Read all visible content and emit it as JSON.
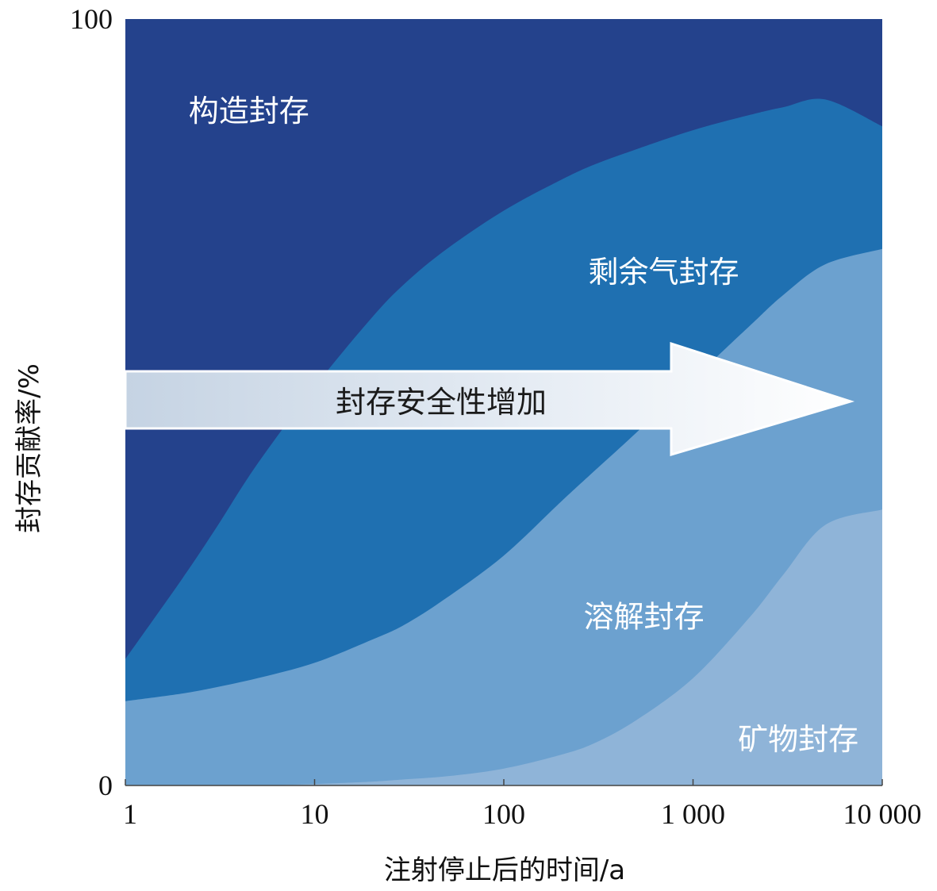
{
  "chart_data": {
    "type": "area",
    "stacked": true,
    "x_scale": "log",
    "xlim": [
      1,
      10000
    ],
    "ylim": [
      0,
      100
    ],
    "xlabel": "注射停止后的时间/a",
    "ylabel": "封存贡献率/%",
    "x_ticks": [
      {
        "value": 1,
        "label": "1"
      },
      {
        "value": 10,
        "label": "10"
      },
      {
        "value": 100,
        "label": "100"
      },
      {
        "value": 1000,
        "label": "1 000"
      },
      {
        "value": 10000,
        "label": "10 000"
      }
    ],
    "y_ticks": [
      {
        "value": 0,
        "label": "0"
      },
      {
        "value": 100,
        "label": "100"
      }
    ],
    "x": [
      1,
      2,
      3,
      5,
      10,
      20,
      30,
      50,
      100,
      200,
      300,
      500,
      1000,
      2000,
      3000,
      5000,
      10000
    ],
    "boundaries": [
      {
        "name": "剩余气封存",
        "color": "#1f70b1",
        "y_top": [
          16.5,
          27,
          33.5,
          42,
          52,
          61,
          65.5,
          70,
          75,
          79,
          81,
          83,
          85.5,
          87.5,
          88.5,
          89.5,
          86
        ]
      },
      {
        "name": "溶解封存",
        "color": "#6ca1cf",
        "y_top": [
          11,
          12,
          12.8,
          14,
          16,
          19,
          21,
          24.5,
          30,
          37,
          41,
          46,
          53,
          60,
          64,
          68,
          70
        ]
      },
      {
        "name": "矿物封存",
        "color": "#8fb4d8",
        "y_top": [
          0,
          0,
          0,
          0,
          0.2,
          0.5,
          0.8,
          1.2,
          2.2,
          4,
          5.5,
          8.5,
          14,
          22,
          27.5,
          34,
          36
        ]
      }
    ],
    "regions": [
      {
        "name": "构造封存",
        "color": "#24428c",
        "label_at": {
          "x": 4.5,
          "y": 88
        }
      },
      {
        "name": "剩余气封存",
        "color": "#1f70b1",
        "label_at": {
          "x": 700,
          "y": 67
        }
      },
      {
        "name": "溶解封存",
        "color": "#6ca1cf",
        "label_at": {
          "x": 550,
          "y": 22
        }
      },
      {
        "name": "矿物封存",
        "color": "#8fb4d8",
        "label_at": {
          "x": 3600,
          "y": 6
        }
      }
    ],
    "annotation": {
      "text": "封存安全性增加",
      "type": "arrow",
      "direction": "right"
    }
  }
}
